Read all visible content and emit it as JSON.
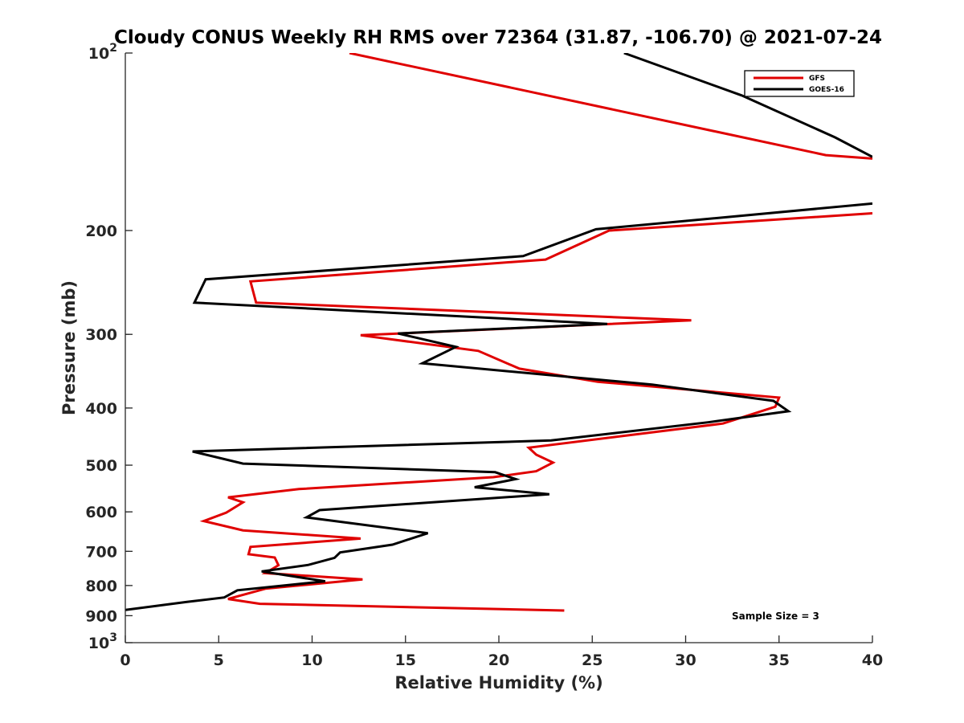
{
  "chart_data": {
    "type": "line",
    "title": "Cloudy CONUS Weekly RH RMS over 72364 (31.87, -106.70) @ 2021-07-24",
    "xlabel": "Relative Humidity (%)",
    "ylabel": "Pressure (mb)",
    "xlim": [
      0,
      40
    ],
    "ylim": [
      100,
      1000
    ],
    "y_scale": "log",
    "y_reversed": true,
    "x_ticks": [
      "0",
      "5",
      "10",
      "15",
      "20",
      "25",
      "30",
      "35",
      "40"
    ],
    "x_tick_values": [
      0,
      5,
      10,
      15,
      20,
      25,
      30,
      35,
      40
    ],
    "y_ticks": [
      {
        "value": 100,
        "base": "10",
        "exp": "2"
      },
      {
        "value": 200,
        "label": "200"
      },
      {
        "value": 300,
        "label": "300"
      },
      {
        "value": 400,
        "label": "400"
      },
      {
        "value": 500,
        "label": "500"
      },
      {
        "value": 600,
        "label": "600"
      },
      {
        "value": 700,
        "label": "700"
      },
      {
        "value": 800,
        "label": "800"
      },
      {
        "value": 900,
        "label": "900"
      },
      {
        "value": 1000,
        "base": "10",
        "exp": "3"
      }
    ],
    "legend_position": "top-right",
    "grid": false,
    "annotation": "Sample Size = 3",
    "series": [
      {
        "name": "GFS",
        "color": "#e00000",
        "points": [
          [
            12.0,
            100
          ],
          [
            37.5,
            149
          ],
          [
            40,
            151
          ],
          [
            null,
            null
          ],
          [
            40,
            187
          ],
          [
            25.9,
            200
          ],
          [
            22.5,
            224
          ],
          [
            6.7,
            244
          ],
          [
            7.0,
            265
          ],
          [
            30.3,
            284
          ],
          [
            12.6,
            301
          ],
          [
            18.9,
            320
          ],
          [
            21.1,
            343
          ],
          [
            25.3,
            361
          ],
          [
            35.0,
            384
          ],
          [
            34.8,
            398
          ],
          [
            32.0,
            425
          ],
          [
            21.6,
            467
          ],
          [
            22.0,
            480
          ],
          [
            22.9,
            495
          ],
          [
            22.0,
            512
          ],
          [
            19.7,
            524
          ],
          [
            9.3,
            549
          ],
          [
            5.5,
            567
          ],
          [
            6.3,
            578
          ],
          [
            5.4,
            602
          ],
          [
            4.2,
            622
          ],
          [
            6.3,
            645
          ],
          [
            12.6,
            666
          ],
          [
            6.7,
            688
          ],
          [
            6.6,
            708
          ],
          [
            8.0,
            717
          ],
          [
            8.2,
            739
          ],
          [
            7.5,
            762
          ],
          [
            12.7,
            781
          ],
          [
            7.5,
            810
          ],
          [
            5.5,
            843
          ],
          [
            7.2,
            859
          ],
          [
            23.5,
            882
          ]
        ]
      },
      {
        "name": "GOES-16",
        "color": "#000000",
        "points": [
          [
            26.7,
            100
          ],
          [
            33.0,
            118
          ],
          [
            38.0,
            139
          ],
          [
            40,
            150
          ],
          [
            null,
            null
          ],
          [
            40,
            180
          ],
          [
            25.2,
            199
          ],
          [
            21.3,
            221
          ],
          [
            4.3,
            242
          ],
          [
            3.7,
            265
          ],
          [
            25.8,
            288
          ],
          [
            14.6,
            299
          ],
          [
            17.7,
            315
          ],
          [
            15.9,
            336
          ],
          [
            28.2,
            365
          ],
          [
            34.7,
            389
          ],
          [
            35.5,
            405
          ],
          [
            31.2,
            423
          ],
          [
            22.8,
            454
          ],
          [
            3.6,
            474
          ],
          [
            6.3,
            497
          ],
          [
            19.8,
            514
          ],
          [
            20.9,
            528
          ],
          [
            18.7,
            545
          ],
          [
            22.7,
            560
          ],
          [
            10.4,
            596
          ],
          [
            9.7,
            613
          ],
          [
            16.2,
            652
          ],
          [
            14.3,
            682
          ],
          [
            11.5,
            703
          ],
          [
            11.2,
            718
          ],
          [
            9.8,
            738
          ],
          [
            7.3,
            757
          ],
          [
            10.7,
            787
          ],
          [
            6.0,
            815
          ],
          [
            5.3,
            838
          ],
          [
            3.3,
            853
          ],
          [
            0,
            880
          ]
        ]
      }
    ]
  }
}
